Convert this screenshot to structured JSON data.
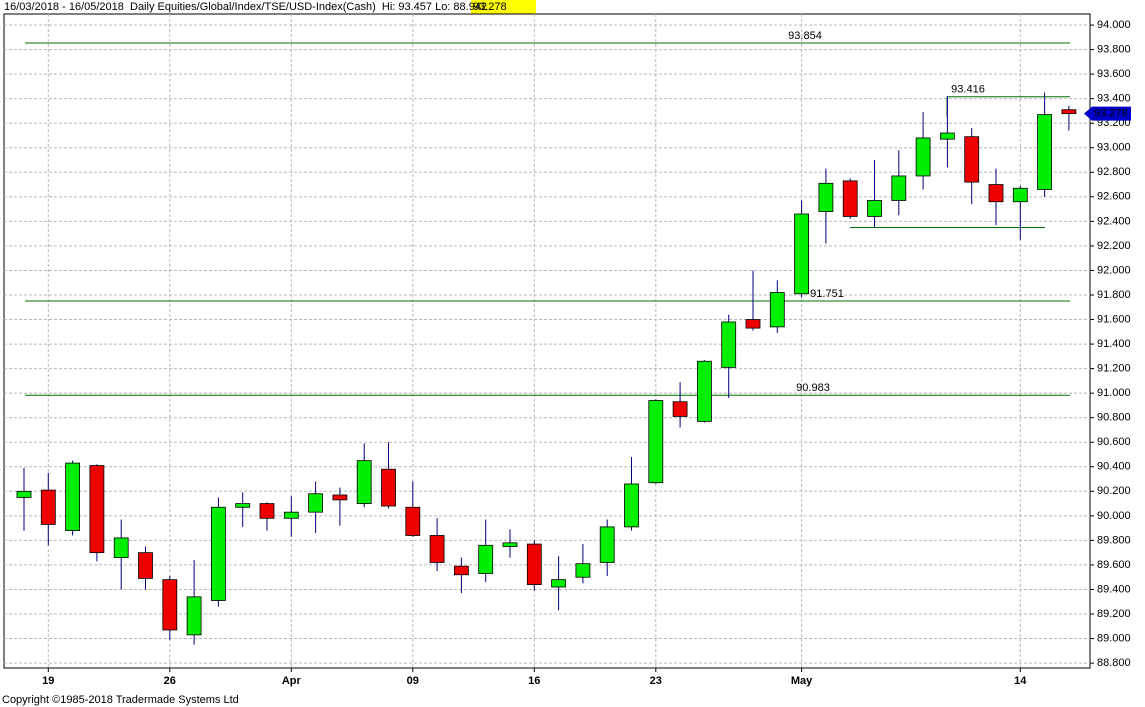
{
  "chart_data": {
    "type": "candlestick",
    "title": "16/03/2018 - 16/05/2018  Daily Equities/Global/Index/TSE/USD-Index(Cash)  Hi: 93.457 Lo: 88.942",
    "last": "93.278",
    "footer": "Copyright ©1985-2018 Tradermade Systems Ltd",
    "categories": [
      null,
      "19",
      null,
      null,
      null,
      null,
      "26",
      null,
      null,
      null,
      null,
      "Apr",
      null,
      null,
      null,
      null,
      "09",
      null,
      null,
      null,
      null,
      "16",
      null,
      null,
      null,
      null,
      "23",
      null,
      null,
      null,
      null,
      null,
      "May",
      null,
      null,
      null,
      null,
      null,
      null,
      null,
      null,
      "14",
      null,
      null
    ],
    "open": [
      90.15,
      90.21,
      89.88,
      90.41,
      89.66,
      89.7,
      89.48,
      89.03,
      89.31,
      90.07,
      90.1,
      89.98,
      90.03,
      90.17,
      90.1,
      90.38,
      90.07,
      89.84,
      89.59,
      89.53,
      89.75,
      89.77,
      89.42,
      89.5,
      89.62,
      89.91,
      90.27,
      90.93,
      90.77,
      91.21,
      91.6,
      91.54,
      91.81,
      92.48,
      92.73,
      92.44,
      92.57,
      92.77,
      93.07,
      93.09,
      92.7,
      92.56,
      92.66,
      93.31
    ],
    "high": [
      90.39,
      90.35,
      90.45,
      90.42,
      89.97,
      89.75,
      89.51,
      89.64,
      90.15,
      90.19,
      90.11,
      90.16,
      90.28,
      90.23,
      90.59,
      90.6,
      90.28,
      89.98,
      89.66,
      89.97,
      89.89,
      89.8,
      89.67,
      89.77,
      89.97,
      90.48,
      90.95,
      91.09,
      91.27,
      91.64,
      92.0,
      91.92,
      92.57,
      92.83,
      92.75,
      92.9,
      92.98,
      93.29,
      93.42,
      93.16,
      92.83,
      92.69,
      93.45,
      93.34
    ],
    "low": [
      89.88,
      89.76,
      89.84,
      89.63,
      89.4,
      89.4,
      88.99,
      88.95,
      89.26,
      89.91,
      89.88,
      89.83,
      89.86,
      89.92,
      90.07,
      90.06,
      89.83,
      89.55,
      89.37,
      89.46,
      89.66,
      89.39,
      89.23,
      89.45,
      89.51,
      89.88,
      90.26,
      90.72,
      90.76,
      90.96,
      91.51,
      91.49,
      91.78,
      92.22,
      92.42,
      92.35,
      92.45,
      92.66,
      92.84,
      92.54,
      92.37,
      92.25,
      92.6,
      93.14
    ],
    "close": [
      90.2,
      89.93,
      90.43,
      89.7,
      89.82,
      89.49,
      89.07,
      89.34,
      90.07,
      90.1,
      89.98,
      90.03,
      90.18,
      90.13,
      90.45,
      90.08,
      89.84,
      89.62,
      89.52,
      89.76,
      89.78,
      89.44,
      89.48,
      89.61,
      89.91,
      90.26,
      90.94,
      90.81,
      91.26,
      91.58,
      91.53,
      91.82,
      92.46,
      92.71,
      92.44,
      92.57,
      92.77,
      93.08,
      93.12,
      92.72,
      92.56,
      92.67,
      93.27,
      93.278
    ],
    "up_color": "#00ee00",
    "down_color": "#ee0000",
    "wick_color": "#000080",
    "lines": [
      93.854,
      93.416,
      91.751,
      90.983,
      92.35
    ],
    "line_color": "#007000",
    "ylim": [
      88.76,
      94.09
    ],
    "yticks": [
      {
        "value": 88.8,
        "label": "88.800"
      },
      {
        "value": 89,
        "label": "89.000"
      },
      {
        "value": 89.2,
        "label": "89.200"
      },
      {
        "value": 89.4,
        "label": "89.400"
      },
      {
        "value": 89.6,
        "label": "89.600"
      },
      {
        "value": 89.8,
        "label": "89.800"
      },
      {
        "value": 90,
        "label": "90.000"
      },
      {
        "value": 90.2,
        "label": "90.200"
      },
      {
        "value": 90.4,
        "label": "90.400"
      },
      {
        "value": 90.6,
        "label": "90.600"
      },
      {
        "value": 90.8,
        "label": "90.800"
      },
      {
        "value": 91,
        "label": "91.000"
      },
      {
        "value": 91.2,
        "label": "91.200"
      },
      {
        "value": 91.4,
        "label": "91.400"
      },
      {
        "value": 91.6,
        "label": "91.600"
      },
      {
        "value": 91.8,
        "label": "91.800"
      },
      {
        "value": 92,
        "label": "92.000"
      },
      {
        "value": 92.2,
        "label": "92.200"
      },
      {
        "value": 92.4,
        "label": "92.400"
      },
      {
        "value": 92.6,
        "label": "92.600"
      },
      {
        "value": 92.8,
        "label": "92.800"
      },
      {
        "value": 93,
        "label": "93.000"
      },
      {
        "value": 93.2,
        "label": "93.200"
      },
      {
        "value": 93.4,
        "label": "93.400"
      },
      {
        "value": 93.6,
        "label": "93.600"
      },
      {
        "value": 93.8,
        "label": "93.800"
      },
      {
        "value": 94,
        "label": "94.000"
      }
    ],
    "grid": true
  }
}
